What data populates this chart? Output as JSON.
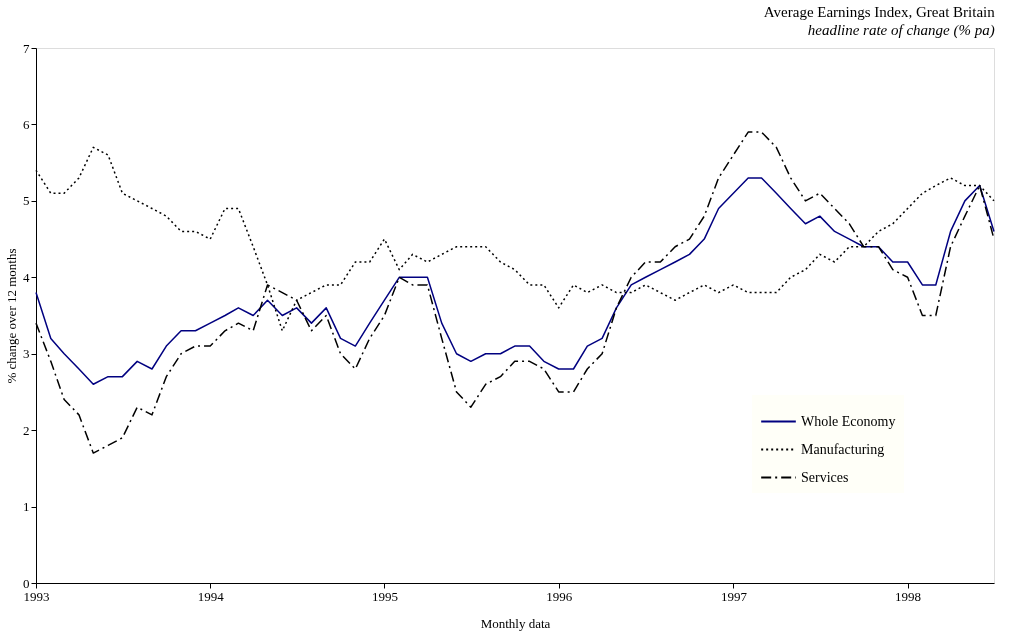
{
  "chart_data": {
    "type": "line",
    "title": "Average Earnings Index, Great Britain",
    "subtitle": "headline rate of change (% pa)",
    "xlabel": "Monthly data",
    "ylabel": "% change over 12 months",
    "x": [
      "1993-01",
      "1993-02",
      "1993-03",
      "1993-04",
      "1993-05",
      "1993-06",
      "1993-07",
      "1993-08",
      "1993-09",
      "1993-10",
      "1993-11",
      "1993-12",
      "1994-01",
      "1994-02",
      "1994-03",
      "1994-04",
      "1994-05",
      "1994-06",
      "1994-07",
      "1994-08",
      "1994-09",
      "1994-10",
      "1994-11",
      "1994-12",
      "1995-01",
      "1995-02",
      "1995-03",
      "1995-04",
      "1995-05",
      "1995-06",
      "1995-07",
      "1995-08",
      "1995-09",
      "1995-10",
      "1995-11",
      "1995-12",
      "1996-01",
      "1996-02",
      "1996-03",
      "1996-04",
      "1996-05",
      "1996-06",
      "1996-07",
      "1996-08",
      "1996-09",
      "1996-10",
      "1996-11",
      "1996-12",
      "1997-01",
      "1997-02",
      "1997-03",
      "1997-04",
      "1997-05",
      "1997-06",
      "1997-07",
      "1997-08",
      "1997-09",
      "1997-10",
      "1997-11",
      "1997-12",
      "1998-01",
      "1998-02",
      "1998-03",
      "1998-04",
      "1998-05",
      "1998-06",
      "1998-07"
    ],
    "series": [
      {
        "name": "Whole Economy",
        "color": "#000080",
        "line_style": "solid",
        "values": [
          3.8,
          3.2,
          3.0,
          2.8,
          2.6,
          2.7,
          2.7,
          2.9,
          2.8,
          3.1,
          3.3,
          3.3,
          3.4,
          3.5,
          3.6,
          3.5,
          3.7,
          3.5,
          3.6,
          3.4,
          3.6,
          3.2,
          3.1,
          3.4,
          3.7,
          4.0,
          4.0,
          4.0,
          3.4,
          3.0,
          2.9,
          3.0,
          3.0,
          3.1,
          3.1,
          2.9,
          2.8,
          2.8,
          3.1,
          3.2,
          3.6,
          3.9,
          4.0,
          4.1,
          4.2,
          4.3,
          4.5,
          4.9,
          5.1,
          5.3,
          5.3,
          5.1,
          4.9,
          4.7,
          4.8,
          4.6,
          4.5,
          4.4,
          4.4,
          4.2,
          4.2,
          3.9,
          3.9,
          4.6,
          5.0,
          5.2,
          4.6
        ]
      },
      {
        "name": "Manufacturing",
        "color": "#000000",
        "line_style": "dotted",
        "values": [
          5.4,
          5.1,
          5.1,
          5.3,
          5.7,
          5.6,
          5.1,
          5.0,
          4.9,
          4.8,
          4.6,
          4.6,
          4.5,
          4.9,
          4.9,
          4.4,
          3.9,
          3.3,
          3.7,
          3.8,
          3.9,
          3.9,
          4.2,
          4.2,
          4.5,
          4.1,
          4.3,
          4.2,
          4.3,
          4.4,
          4.4,
          4.4,
          4.2,
          4.1,
          3.9,
          3.9,
          3.6,
          3.9,
          3.8,
          3.9,
          3.8,
          3.8,
          3.9,
          3.8,
          3.7,
          3.8,
          3.9,
          3.8,
          3.9,
          3.8,
          3.8,
          3.8,
          4.0,
          4.1,
          4.3,
          4.2,
          4.4,
          4.4,
          4.6,
          4.7,
          4.9,
          5.1,
          5.2,
          5.3,
          5.2,
          5.2,
          5.0
        ]
      },
      {
        "name": "Services",
        "color": "#000000",
        "line_style": "dashed",
        "values": [
          3.4,
          2.9,
          2.4,
          2.2,
          1.7,
          1.8,
          1.9,
          2.3,
          2.2,
          2.7,
          3.0,
          3.1,
          3.1,
          3.3,
          3.4,
          3.3,
          3.9,
          3.8,
          3.7,
          3.3,
          3.5,
          3.0,
          2.8,
          3.2,
          3.5,
          4.0,
          3.9,
          3.9,
          3.2,
          2.5,
          2.3,
          2.6,
          2.7,
          2.9,
          2.9,
          2.8,
          2.5,
          2.5,
          2.8,
          3.0,
          3.6,
          4.0,
          4.2,
          4.2,
          4.4,
          4.5,
          4.8,
          5.3,
          5.6,
          5.9,
          5.9,
          5.7,
          5.3,
          5.0,
          5.1,
          4.9,
          4.7,
          4.4,
          4.4,
          4.1,
          4.0,
          3.5,
          3.5,
          4.4,
          4.8,
          5.2,
          4.5
        ]
      }
    ],
    "xlim": [
      "1993-01",
      "1998-07"
    ],
    "xticks": [
      {
        "value": "1993-01",
        "label": "1993"
      },
      {
        "value": "1994-01",
        "label": "1994"
      },
      {
        "value": "1995-01",
        "label": "1995"
      },
      {
        "value": "1996-01",
        "label": "1996"
      },
      {
        "value": "1997-01",
        "label": "1997"
      },
      {
        "value": "1998-01",
        "label": "1998"
      }
    ],
    "ylim": [
      0,
      7
    ],
    "yticks": [
      0,
      1,
      2,
      3,
      4,
      5,
      6,
      7
    ],
    "grid": false,
    "legend": "bottom right",
    "marker": "none"
  }
}
